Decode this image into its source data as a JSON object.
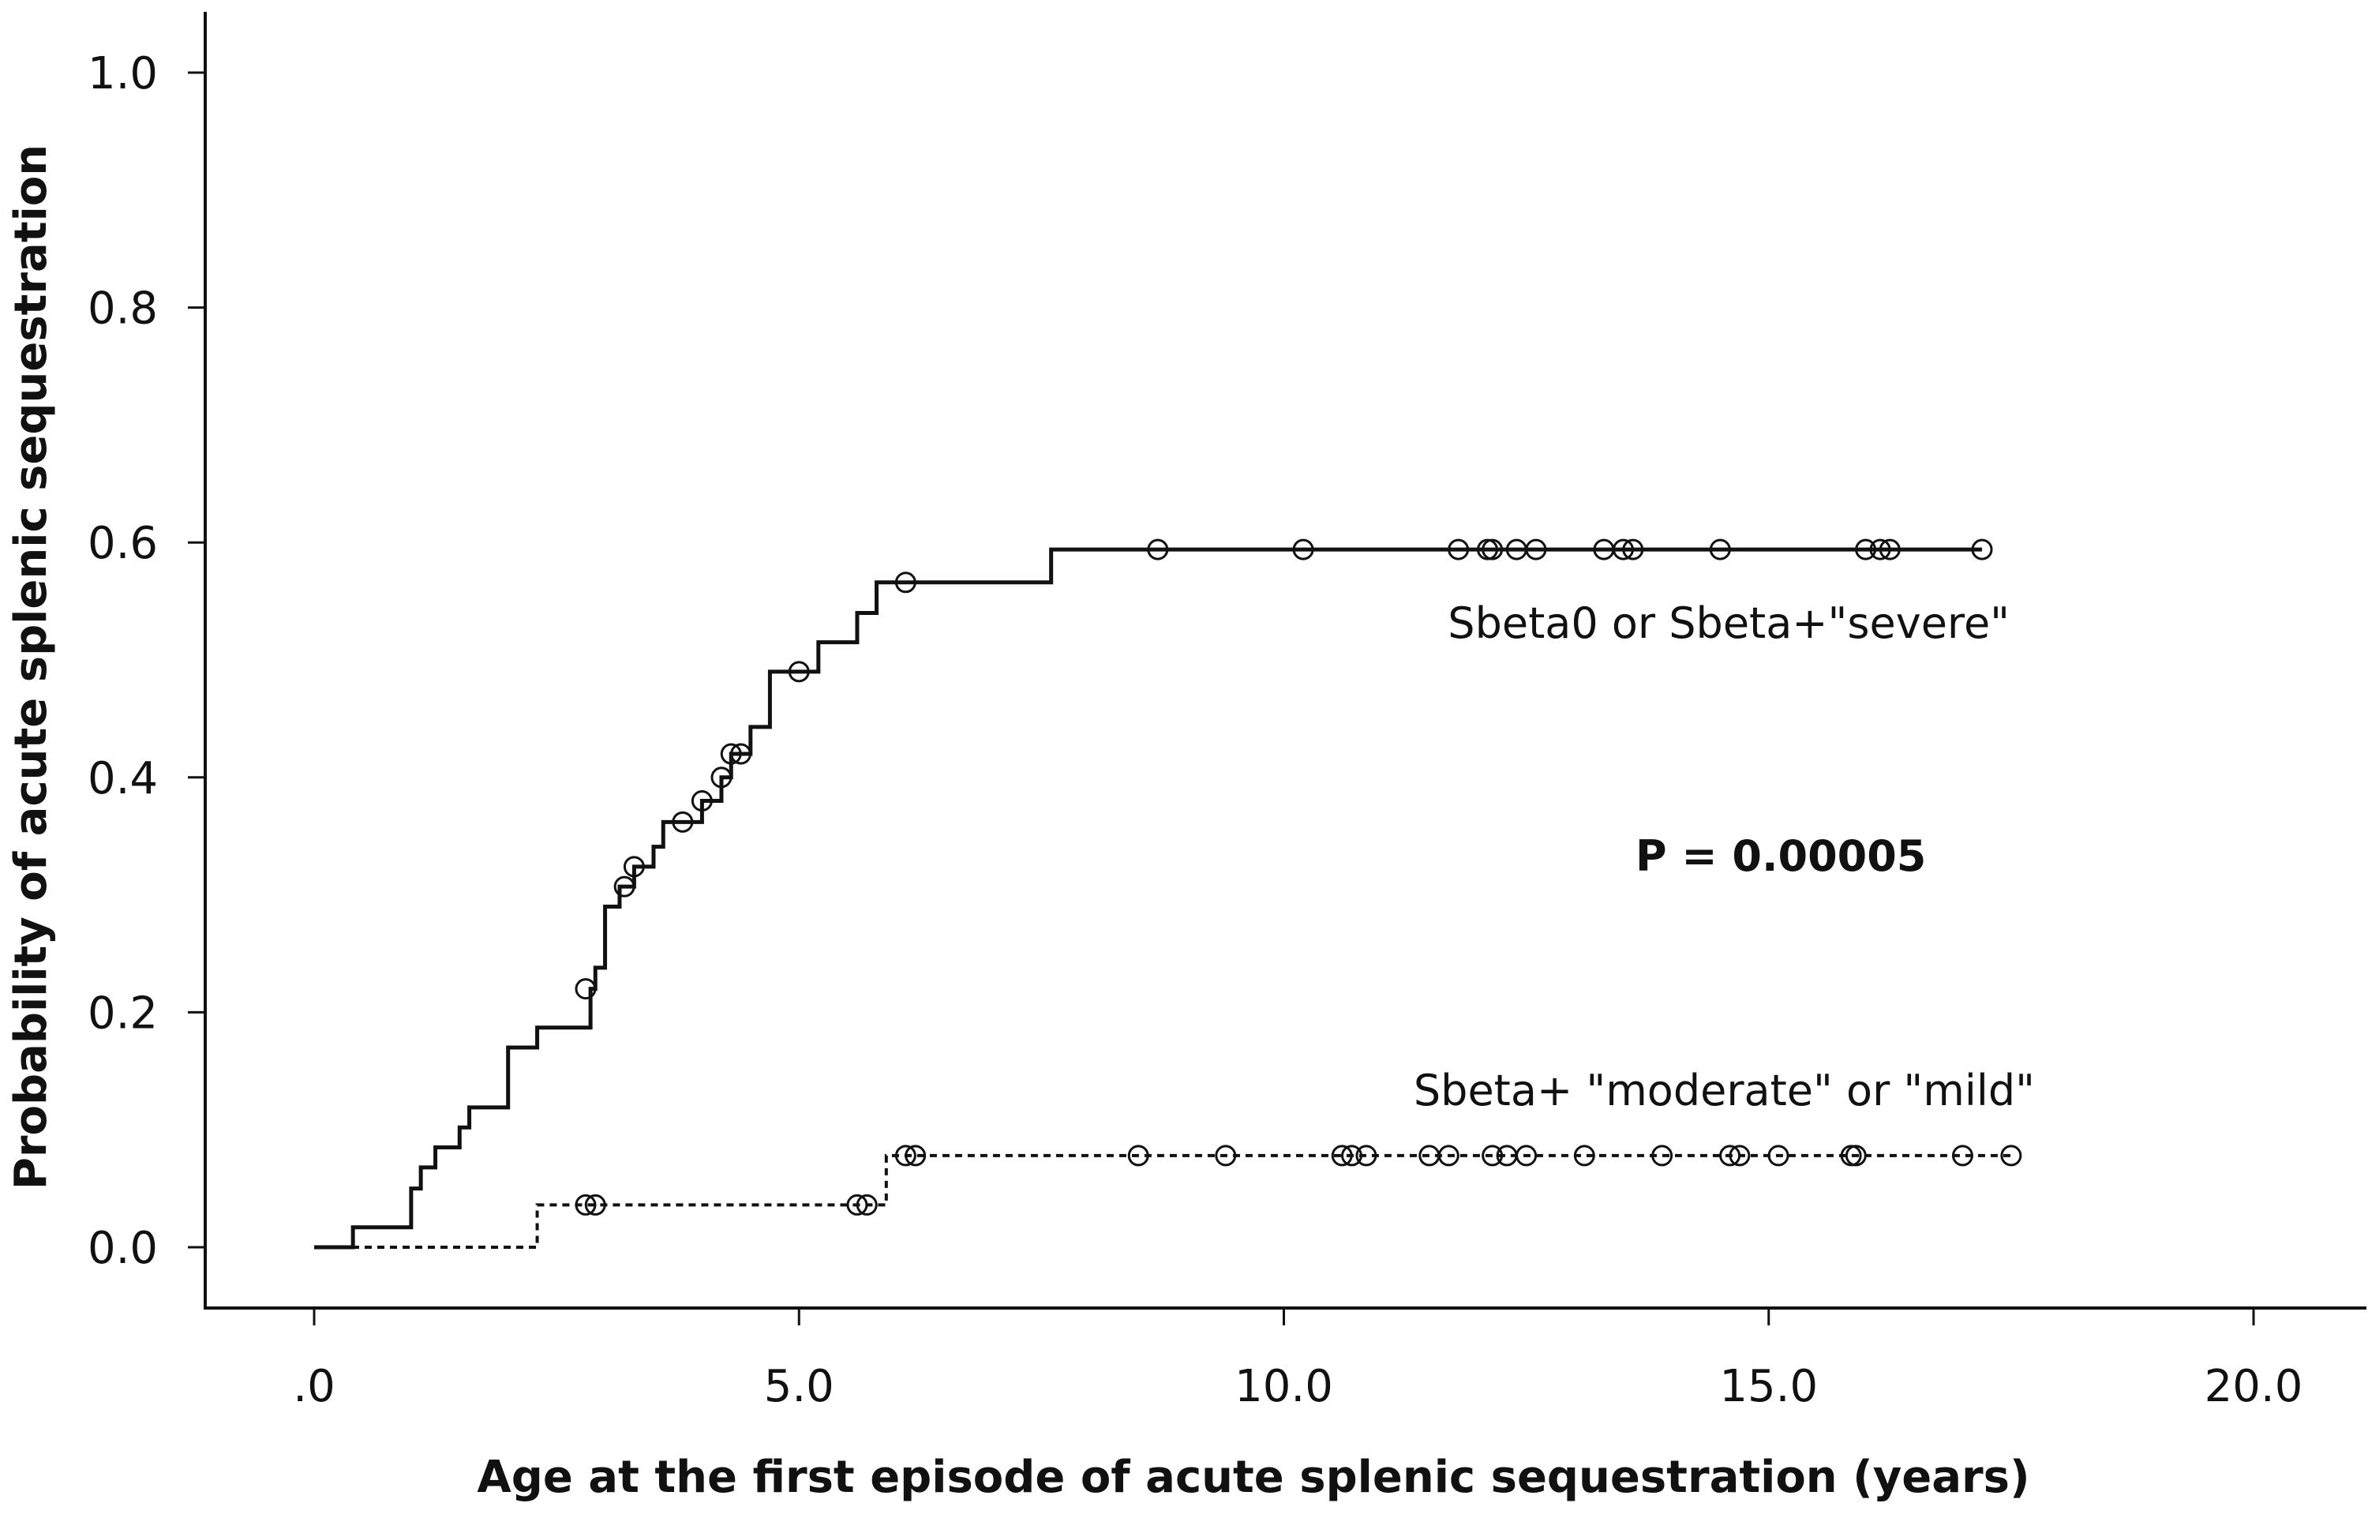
{
  "chart_data": {
    "type": "line",
    "subtype": "kaplan-meier-cumulative-incidence",
    "title": "",
    "xlabel": "Age at the first episode of acute splenic sequestration (years)",
    "ylabel": "Probability of acute splenic sequestration",
    "xlim": [
      0,
      20
    ],
    "ylim": [
      0,
      1.0
    ],
    "x_ticks": [
      0,
      5,
      10,
      15,
      20
    ],
    "x_tick_labels": [
      ".0",
      "5.0",
      "10.0",
      "15.0",
      "20.0"
    ],
    "y_ticks": [
      0,
      0.2,
      0.4,
      0.6,
      0.8,
      1.0
    ],
    "y_tick_labels": [
      "0.0",
      "0.2",
      "0.4",
      "0.6",
      "0.8",
      "1.0"
    ],
    "grid": false,
    "annotation": "P = 0.00005",
    "series": [
      {
        "name": "Sbeta0  or  Sbeta+\"severe\"",
        "line_style": "solid",
        "color": "#111111",
        "steps": [
          [
            0,
            0
          ],
          [
            0.4,
            0.017
          ],
          [
            1.0,
            0.05
          ],
          [
            1.1,
            0.068
          ],
          [
            1.25,
            0.085
          ],
          [
            1.5,
            0.102
          ],
          [
            1.6,
            0.119
          ],
          [
            2.0,
            0.17
          ],
          [
            2.3,
            0.187
          ],
          [
            2.85,
            0.22
          ],
          [
            2.9,
            0.238
          ],
          [
            3.0,
            0.29
          ],
          [
            3.15,
            0.307
          ],
          [
            3.3,
            0.324
          ],
          [
            3.5,
            0.341
          ],
          [
            3.6,
            0.362
          ],
          [
            4.0,
            0.38
          ],
          [
            4.2,
            0.4
          ],
          [
            4.3,
            0.42
          ],
          [
            4.5,
            0.443
          ],
          [
            4.7,
            0.49
          ],
          [
            5.2,
            0.515
          ],
          [
            5.6,
            0.54
          ],
          [
            5.8,
            0.566
          ],
          [
            7.6,
            0.594
          ]
        ],
        "end_x": 17.2,
        "censored": [
          [
            2.8,
            0.22
          ],
          [
            3.2,
            0.307
          ],
          [
            3.3,
            0.324
          ],
          [
            3.8,
            0.362
          ],
          [
            4.0,
            0.38
          ],
          [
            4.2,
            0.4
          ],
          [
            4.3,
            0.42
          ],
          [
            4.4,
            0.42
          ],
          [
            5.0,
            0.49
          ],
          [
            6.1,
            0.566
          ],
          [
            8.7,
            0.594
          ],
          [
            10.2,
            0.594
          ],
          [
            11.8,
            0.594
          ],
          [
            12.1,
            0.594
          ],
          [
            12.15,
            0.594
          ],
          [
            12.4,
            0.594
          ],
          [
            12.6,
            0.594
          ],
          [
            13.3,
            0.594
          ],
          [
            13.5,
            0.594
          ],
          [
            13.6,
            0.594
          ],
          [
            14.5,
            0.594
          ],
          [
            16.0,
            0.594
          ],
          [
            16.15,
            0.594
          ],
          [
            16.25,
            0.594
          ],
          [
            17.2,
            0.594
          ]
        ]
      },
      {
        "name": "Sbeta+ \"moderate\" or \"mild\"",
        "line_style": "dotted",
        "color": "#111111",
        "steps": [
          [
            0,
            0
          ],
          [
            2.3,
            0.036
          ],
          [
            5.9,
            0.078
          ]
        ],
        "end_x": 17.5,
        "censored": [
          [
            2.8,
            0.036
          ],
          [
            2.9,
            0.036
          ],
          [
            5.6,
            0.036
          ],
          [
            5.7,
            0.036
          ],
          [
            6.1,
            0.078
          ],
          [
            6.2,
            0.078
          ],
          [
            8.5,
            0.078
          ],
          [
            9.4,
            0.078
          ],
          [
            10.6,
            0.078
          ],
          [
            10.7,
            0.078
          ],
          [
            10.85,
            0.078
          ],
          [
            11.5,
            0.078
          ],
          [
            11.7,
            0.078
          ],
          [
            12.15,
            0.078
          ],
          [
            12.3,
            0.078
          ],
          [
            12.5,
            0.078
          ],
          [
            13.1,
            0.078
          ],
          [
            13.9,
            0.078
          ],
          [
            14.6,
            0.078
          ],
          [
            14.7,
            0.078
          ],
          [
            15.1,
            0.078
          ],
          [
            15.85,
            0.078
          ],
          [
            15.9,
            0.078
          ],
          [
            17.0,
            0.078
          ],
          [
            17.5,
            0.078
          ]
        ]
      }
    ]
  }
}
